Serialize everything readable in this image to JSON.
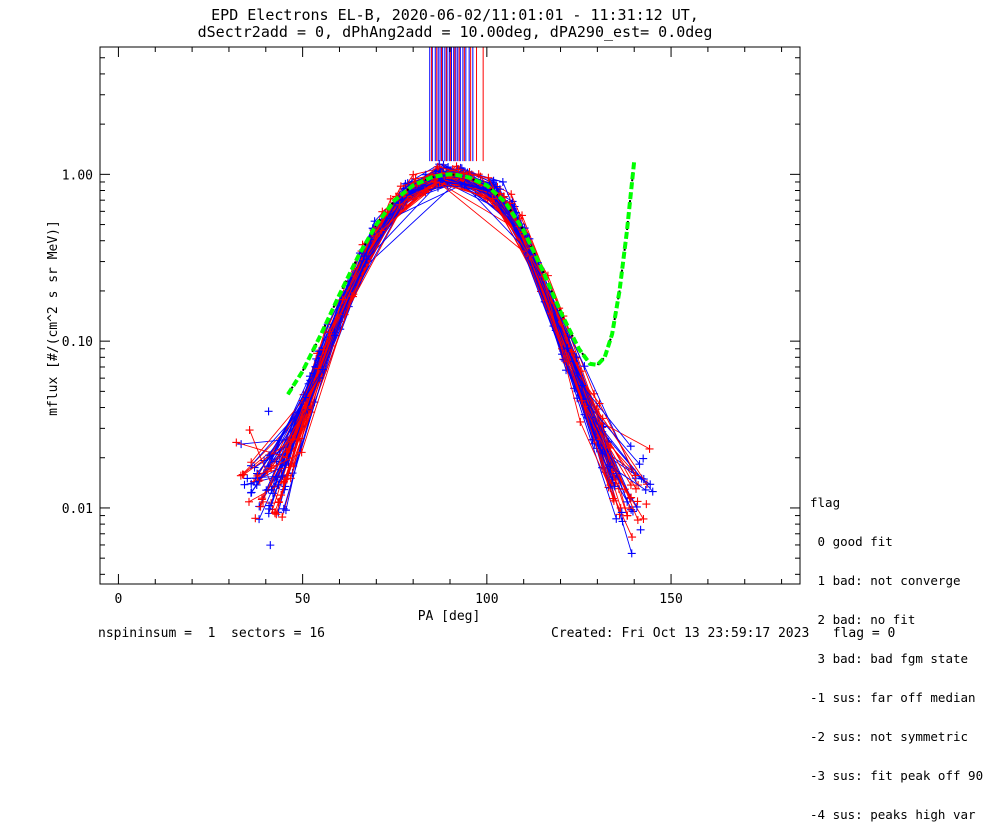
{
  "title_line1": "EPD Electrons EL-B, 2020-06-02/11:01:01 - 11:31:12 UT,",
  "title_line2": "dSectr2add = 0, dPhAng2add = 10.00deg, dPA290_est=   0.0deg",
  "footer_left": "nspininsum =  1  sectors = 16",
  "footer_right": "Created: Fri Oct 13 23:59:17 2023   flag = 0",
  "legend": {
    "title": "flag",
    "items": [
      " 0 good fit",
      " 1 bad: not converge",
      " 2 bad: no fit",
      " 3 bad: bad fgm state",
      "-1 sus: far off median",
      "-2 sus: not symmetric",
      "-3 sus: fit peak off 90",
      "-4 sus: peaks high var"
    ]
  },
  "colors": {
    "series_a": "#0000ff",
    "series_b": "#ff0000",
    "fit": "#00ff00",
    "fit_dark": "#000000",
    "axes": "#000000"
  },
  "chart_data": {
    "type": "line",
    "xlabel": "PA [deg]",
    "ylabel": "mflux [#/(cm^2 s sr MeV)]",
    "xlim": [
      -5,
      185
    ],
    "ylim": [
      0.0035,
      5.8
    ],
    "yscale": "log",
    "xticks": [
      0,
      50,
      100,
      150
    ],
    "xtick_labels": [
      "0",
      "50",
      "100",
      "150"
    ],
    "yticks": [
      0.01,
      0.1,
      1.0
    ],
    "ytick_labels": [
      "0.01",
      "0.10",
      "1.00"
    ],
    "grid": false,
    "peak_markers": {
      "y_from": 1.2,
      "y_to": 5.8,
      "blue_x": [
        84.5,
        85.2,
        86.0,
        86.8,
        87.3,
        88.0,
        88.6,
        89.2,
        89.8,
        90.4,
        91.0,
        91.6,
        92.1,
        92.8,
        93.5,
        94.3,
        95.2,
        96.2
      ],
      "red_x": [
        85.0,
        86.4,
        87.7,
        89.0,
        90.1,
        91.3,
        92.5,
        93.9,
        95.6,
        97.2,
        99.0
      ]
    },
    "profile": {
      "pa": [
        33,
        40,
        45,
        50,
        55,
        60,
        65,
        70,
        75,
        80,
        85,
        90,
        95,
        100,
        105,
        110,
        115,
        120,
        125,
        130,
        135,
        140,
        144
      ],
      "log_flux": [
        -1.75,
        -1.9,
        -1.82,
        -1.45,
        -1.12,
        -0.85,
        -0.6,
        -0.35,
        -0.18,
        -0.08,
        -0.02,
        0.0,
        -0.02,
        -0.07,
        -0.15,
        -0.35,
        -0.65,
        -0.95,
        -1.25,
        -1.55,
        -1.85,
        -2.0,
        -1.8
      ],
      "spread": [
        0.35,
        0.35,
        0.3,
        0.18,
        0.12,
        0.1,
        0.09,
        0.08,
        0.07,
        0.06,
        0.05,
        0.05,
        0.05,
        0.06,
        0.07,
        0.09,
        0.12,
        0.15,
        0.2,
        0.25,
        0.3,
        0.35,
        0.35
      ],
      "n_profiles": 70
    },
    "fit_curve": {
      "x": [
        46,
        50,
        55,
        60,
        65,
        70,
        75,
        80,
        85,
        88,
        90,
        92,
        95,
        100,
        105,
        110,
        115,
        120,
        125,
        128,
        130,
        132,
        134,
        136,
        138,
        140
      ],
      "y": [
        0.048,
        0.066,
        0.11,
        0.19,
        0.32,
        0.5,
        0.7,
        0.86,
        0.96,
        0.99,
        1.0,
        0.99,
        0.96,
        0.86,
        0.68,
        0.46,
        0.27,
        0.15,
        0.09,
        0.073,
        0.072,
        0.08,
        0.11,
        0.2,
        0.45,
        1.2
      ]
    }
  }
}
